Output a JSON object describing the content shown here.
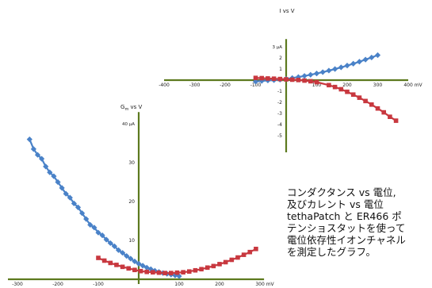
{
  "chart_data": [
    {
      "type": "scatter",
      "title": "I vs V",
      "x_unit": "mV",
      "y_unit": "μA",
      "xlim": [
        -400,
        400
      ],
      "ylim": [
        -5,
        3
      ],
      "x_ticks": [
        "-400",
        "-300",
        "-200",
        "-100",
        "0",
        "100",
        "200",
        "300",
        "400 mV"
      ],
      "y_ticks": [
        "3 μA",
        "2",
        "1",
        "0",
        "-1",
        "-2",
        "-3",
        "-4",
        "-5"
      ],
      "series": [
        {
          "color": "#4a82c8",
          "marker": "diamond",
          "x": [
            -100,
            -80,
            -60,
            -40,
            -20,
            0,
            20,
            40,
            60,
            80,
            100,
            120,
            140,
            160,
            180,
            200,
            220,
            240,
            260,
            280,
            300
          ],
          "y": [
            -0.13,
            -0.07,
            -0.03,
            0.0,
            0.04,
            0.11,
            0.19,
            0.28,
            0.38,
            0.48,
            0.6,
            0.72,
            0.86,
            1.0,
            1.15,
            1.31,
            1.48,
            1.66,
            1.85,
            2.04,
            2.25
          ]
        },
        {
          "color": "#c8383f",
          "marker": "square",
          "x": [
            -100,
            -80,
            -60,
            -40,
            -20,
            0,
            20,
            40,
            60,
            80,
            100,
            140,
            160,
            180,
            200,
            220,
            240,
            260,
            280,
            300,
            320,
            340,
            360
          ],
          "y": [
            0.2,
            0.18,
            0.15,
            0.13,
            0.1,
            0.07,
            0.04,
            0.01,
            -0.04,
            -0.1,
            -0.18,
            -0.45,
            -0.62,
            -0.82,
            -1.05,
            -1.3,
            -1.58,
            -1.88,
            -2.2,
            -2.55,
            -2.9,
            -3.3,
            -3.65
          ]
        }
      ]
    },
    {
      "type": "scatter",
      "title": "G_m vs V",
      "x_unit": "mV",
      "xlim": [
        -300,
        300
      ],
      "ylim": [
        0,
        40
      ],
      "x_ticks": [
        "-300",
        "-200",
        "-100",
        "0",
        "100",
        "200",
        "300 mV"
      ],
      "y_ticks": [
        "40 μA",
        "30",
        "20",
        "10"
      ],
      "series": [
        {
          "color": "#4a82c8",
          "marker": "diamond",
          "x": [
            -270,
            -260,
            -250,
            -240,
            -230,
            -220,
            -210,
            -200,
            -190,
            -180,
            -170,
            -160,
            -150,
            -140,
            -130,
            -120,
            -110,
            -100,
            -90,
            -80,
            -70,
            -60,
            -50,
            -40,
            -30,
            -20,
            -10,
            0,
            10,
            20,
            30,
            40,
            50,
            60,
            70,
            80,
            90,
            100
          ],
          "y": [
            36,
            33.5,
            32,
            31,
            29,
            27.5,
            26.5,
            25,
            23.5,
            22,
            21,
            19.5,
            18.5,
            17,
            15.5,
            14,
            13.3,
            12,
            11.3,
            10.2,
            9.3,
            8.5,
            7.5,
            6.8,
            6,
            5.3,
            4.6,
            4,
            3.5,
            3,
            2.6,
            2.2,
            1.9,
            1.6,
            1.4,
            1.2,
            1.0,
            0.8
          ]
        },
        {
          "color": "#c8383f",
          "marker": "square",
          "x": [
            -100,
            -85,
            -70,
            -55,
            -40,
            -25,
            -10,
            5,
            20,
            35,
            50,
            65,
            80,
            95,
            110,
            125,
            140,
            155,
            170,
            185,
            200,
            215,
            230,
            245,
            260,
            275,
            290
          ],
          "y": [
            5.5,
            4.8,
            4.2,
            3.7,
            3.2,
            2.8,
            2.4,
            2.1,
            1.9,
            1.8,
            1.7,
            1.6,
            1.6,
            1.7,
            1.8,
            2.0,
            2.3,
            2.6,
            3.0,
            3.4,
            3.9,
            4.4,
            5.0,
            5.6,
            6.3,
            7.0,
            7.8
          ]
        }
      ]
    }
  ],
  "caption": [
    "コンダクタンス vs 電位,",
    "及びカレント vs 電位",
    "tethaPatch と ER466 ポ",
    "テンショスタットを使って",
    "電位依存性イオンチャネル",
    "を測定したグラフ。"
  ]
}
